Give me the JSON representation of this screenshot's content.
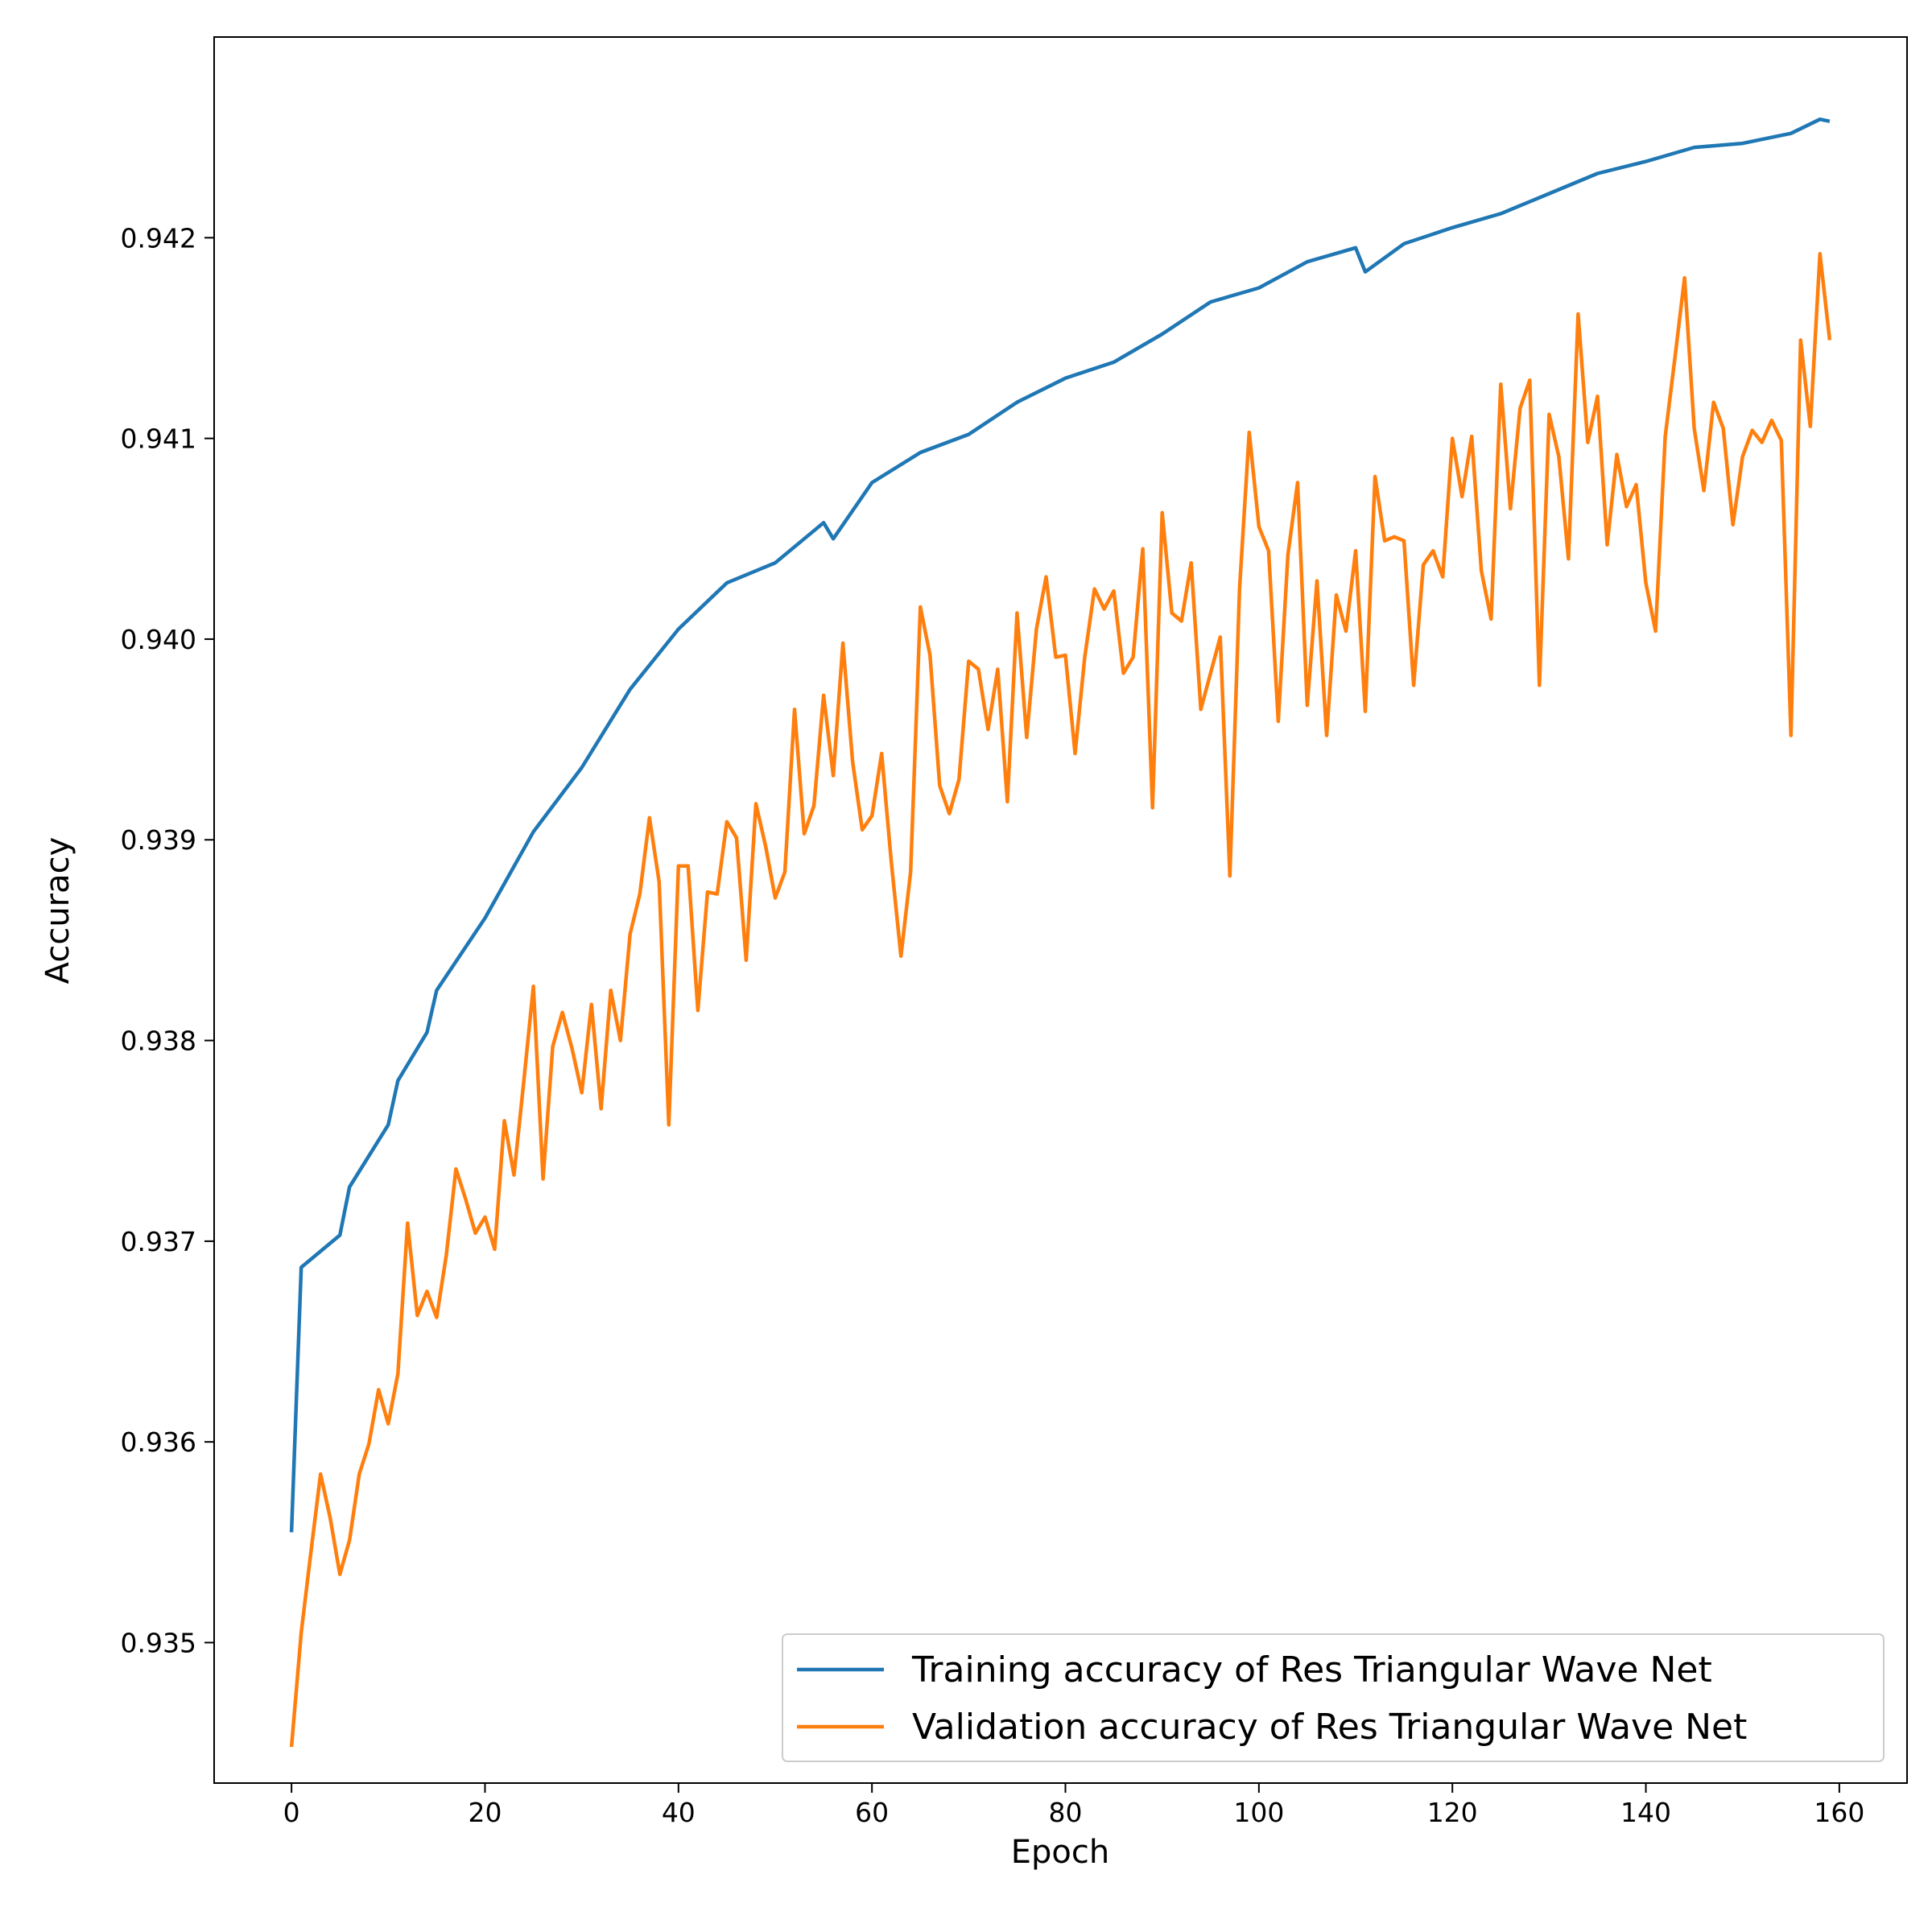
{
  "chart_data": {
    "type": "line",
    "xlabel": "Epoch",
    "ylabel": "Accuracy",
    "xlim": [
      -8,
      167
    ],
    "ylim": [
      0.9343,
      0.943
    ],
    "xticks": [
      0,
      20,
      40,
      60,
      80,
      100,
      120,
      140,
      160
    ],
    "xtick_labels": [
      "0",
      "20",
      "40",
      "60",
      "80",
      "100",
      "120",
      "140",
      "160"
    ],
    "yticks": [
      0.935,
      0.936,
      0.937,
      0.938,
      0.939,
      0.94,
      0.941,
      0.942
    ],
    "ytick_labels": [
      "0.935",
      "0.936",
      "0.937",
      "0.938",
      "0.939",
      "0.940",
      "0.941",
      "0.942"
    ],
    "grid": false,
    "legend_position": "lower-right",
    "series": [
      {
        "name": "Training accuracy of Res Triangular Wave Net",
        "color": "#1f77b4",
        "x": [
          0,
          1,
          5,
          6,
          10,
          11,
          14,
          15,
          20,
          25,
          30,
          35,
          40,
          45,
          50,
          55,
          56,
          60,
          65,
          70,
          75,
          80,
          85,
          90,
          95,
          100,
          105,
          110,
          111,
          115,
          120,
          125,
          130,
          135,
          140,
          145,
          150,
          155,
          158,
          159
        ],
        "y": [
          0.93555,
          0.93687,
          0.93703,
          0.93727,
          0.93758,
          0.9378,
          0.93804,
          0.93825,
          0.93861,
          0.93904,
          0.93936,
          0.93975,
          0.94005,
          0.94028,
          0.94038,
          0.94058,
          0.9405,
          0.94078,
          0.94093,
          0.94102,
          0.94118,
          0.9413,
          0.94138,
          0.94152,
          0.94168,
          0.94175,
          0.94188,
          0.94195,
          0.94183,
          0.94197,
          0.94205,
          0.94212,
          0.94222,
          0.94232,
          0.94238,
          0.94245,
          0.94247,
          0.94252,
          0.94259,
          0.94258
        ]
      },
      {
        "name": "Validation accuracy of Res Triangular Wave Net",
        "color": "#ff7f0e",
        "x": [
          0,
          1,
          2,
          3,
          4,
          5,
          6,
          7,
          8,
          9,
          10,
          11,
          12,
          13,
          14,
          15,
          16,
          17,
          18,
          19,
          20,
          21,
          22,
          23,
          24,
          25,
          26,
          27,
          28,
          29,
          30,
          31,
          32,
          33,
          34,
          35,
          36,
          37,
          38,
          39,
          40,
          41,
          42,
          43,
          44,
          45,
          46,
          47,
          48,
          49,
          50,
          51,
          52,
          53,
          54,
          55,
          56,
          57,
          58,
          59,
          60,
          61,
          62,
          63,
          64,
          65,
          66,
          67,
          68,
          69,
          70,
          71,
          72,
          73,
          74,
          75,
          76,
          77,
          78,
          79,
          80,
          81,
          82,
          83,
          84,
          85,
          86,
          87,
          88,
          89,
          90,
          91,
          92,
          93,
          94,
          95,
          96,
          97,
          98,
          99,
          100,
          101,
          102,
          103,
          104,
          105,
          106,
          107,
          108,
          109,
          110,
          111,
          112,
          113,
          114,
          115,
          116,
          117,
          118,
          119,
          120,
          121,
          122,
          123,
          124,
          125,
          126,
          127,
          128,
          129,
          130,
          131,
          132,
          133,
          134,
          135,
          136,
          137,
          138,
          139,
          140,
          141,
          142,
          143,
          144,
          145,
          146,
          147,
          148,
          149,
          150,
          151,
          152,
          153,
          154,
          155,
          156,
          157,
          158,
          159
        ],
        "y": [
          0.93448,
          0.93505,
          0.93545,
          0.93584,
          0.93562,
          0.93534,
          0.93551,
          0.93584,
          0.93599,
          0.93626,
          0.93609,
          0.93634,
          0.93709,
          0.93663,
          0.93675,
          0.93662,
          0.93693,
          0.93736,
          0.93721,
          0.93704,
          0.93712,
          0.93696,
          0.9376,
          0.93733,
          0.93779,
          0.93827,
          0.93731,
          0.93797,
          0.93814,
          0.93796,
          0.93774,
          0.93818,
          0.93766,
          0.93825,
          0.938,
          0.93853,
          0.93873,
          0.93911,
          0.93879,
          0.93758,
          0.93887,
          0.93887,
          0.93815,
          0.93874,
          0.93873,
          0.93909,
          0.93901,
          0.9384,
          0.93918,
          0.93897,
          0.93871,
          0.93884,
          0.93965,
          0.93903,
          0.93917,
          0.93972,
          0.93932,
          0.93998,
          0.93939,
          0.93905,
          0.93912,
          0.93943,
          0.93889,
          0.93842,
          0.93884,
          0.94016,
          0.93992,
          0.93927,
          0.93913,
          0.9393,
          0.93989,
          0.93985,
          0.93955,
          0.93985,
          0.93919,
          0.94013,
          0.93951,
          0.94005,
          0.94031,
          0.93991,
          0.93992,
          0.93943,
          0.93991,
          0.94025,
          0.94015,
          0.94024,
          0.93983,
          0.93991,
          0.94045,
          0.93916,
          0.94063,
          0.94013,
          0.94009,
          0.94038,
          0.93965,
          0.93983,
          0.94001,
          0.93882,
          0.94025,
          0.94103,
          0.94056,
          0.94044,
          0.93959,
          0.94042,
          0.94078,
          0.93967,
          0.94029,
          0.93952,
          0.94022,
          0.94004,
          0.94044,
          0.93964,
          0.94081,
          0.94049,
          0.94051,
          0.94049,
          0.93977,
          0.94037,
          0.94044,
          0.94031,
          0.941,
          0.94071,
          0.94101,
          0.94034,
          0.9401,
          0.94127,
          0.94065,
          0.94115,
          0.94129,
          0.93977,
          0.94112,
          0.94091,
          0.9404,
          0.94162,
          0.94098,
          0.94121,
          0.94047,
          0.94092,
          0.94066,
          0.94077,
          0.94028,
          0.94004,
          0.94101,
          0.9414,
          0.9418,
          0.94105,
          0.94074,
          0.94118,
          0.94105,
          0.94057,
          0.94091,
          0.94104,
          0.94098,
          0.94109,
          0.94099,
          0.93952,
          0.94149,
          0.94106,
          0.94192,
          0.94149
        ]
      }
    ]
  }
}
